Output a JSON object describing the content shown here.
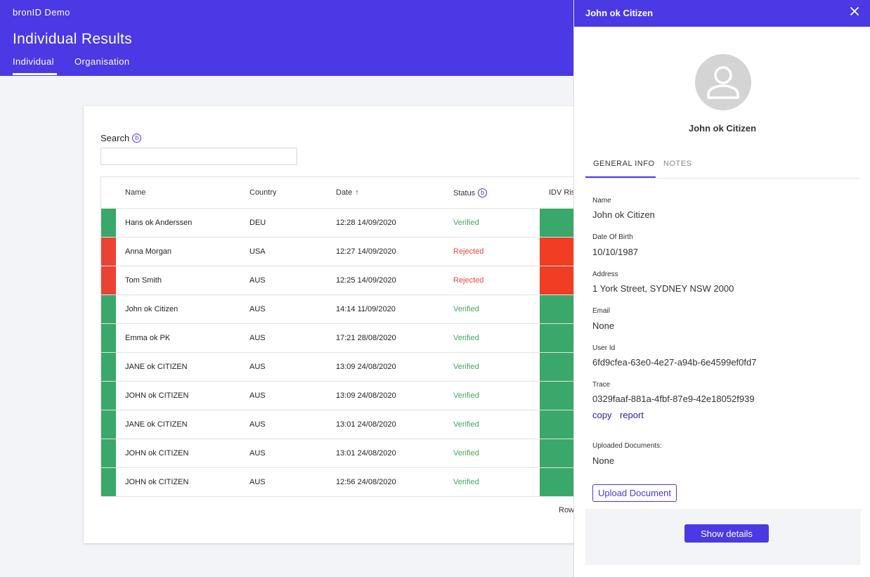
{
  "app": {
    "name": "bronID Demo",
    "page_title": "Individual Results",
    "tabs": [
      {
        "label": "Individual",
        "active": true
      },
      {
        "label": "Organisation",
        "active": false
      }
    ]
  },
  "search": {
    "label": "Search",
    "info_glyph": "b",
    "value": "",
    "placeholder": ""
  },
  "table": {
    "columns": [
      "Name",
      "Country",
      "Date",
      "Status",
      "IDV Ris"
    ],
    "sort_glyph": "↑",
    "status_info_glyph": "b",
    "rows": [
      {
        "name": "Hans ok Anderssen",
        "country": "DEU",
        "date": "12:28 14/09/2020",
        "status": "Verified"
      },
      {
        "name": "Anna Morgan",
        "country": "USA",
        "date": "12:27 14/09/2020",
        "status": "Rejected"
      },
      {
        "name": "Tom Smith",
        "country": "AUS",
        "date": "12:25 14/09/2020",
        "status": "Rejected"
      },
      {
        "name": "John ok Citizen",
        "country": "AUS",
        "date": "14:14 11/09/2020",
        "status": "Verified"
      },
      {
        "name": "Emma ok PK",
        "country": "AUS",
        "date": "17:21 28/08/2020",
        "status": "Verified"
      },
      {
        "name": "JANE ok CITIZEN",
        "country": "AUS",
        "date": "13:09 24/08/2020",
        "status": "Verified"
      },
      {
        "name": "JOHN ok CITIZEN",
        "country": "AUS",
        "date": "13:09 24/08/2020",
        "status": "Verified"
      },
      {
        "name": "JANE ok CITIZEN",
        "country": "AUS",
        "date": "13:01 24/08/2020",
        "status": "Verified"
      },
      {
        "name": "JOHN ok CITIZEN",
        "country": "AUS",
        "date": "13:01 24/08/2020",
        "status": "Verified"
      },
      {
        "name": "JOHN ok CITIZEN",
        "country": "AUS",
        "date": "12:56 24/08/2020",
        "status": "Verified"
      }
    ],
    "footer_label": "Row"
  },
  "panel": {
    "title": "John ok Citizen",
    "person_name": "John ok Citizen",
    "tabs": [
      "GENERAL INFO",
      "NOTES"
    ],
    "fields": [
      {
        "label": "Name",
        "value": "John ok Citizen"
      },
      {
        "label": "Date Of Birth",
        "value": "10/10/1987"
      },
      {
        "label": "Address",
        "value": "1 York Street, SYDNEY NSW 2000"
      },
      {
        "label": "Email",
        "value": "None"
      },
      {
        "label": "User Id",
        "value": "6fd9cfea-63e0-4e27-a94b-6e4599ef0fd7"
      },
      {
        "label": "Trace",
        "value": "0329faaf-881a-4fbf-87e9-42e18052f939"
      }
    ],
    "copy_label": "copy",
    "report_label": "report",
    "uploaded_docs_label": "Uploaded Documents:",
    "uploaded_docs_value": "None",
    "upload_button": "Upload Document",
    "details_button": "Show details"
  },
  "colors": {
    "brand": "#4a39e4",
    "verified": "#3aa86a",
    "rejected": "#ea4335",
    "risk_high": "#f13d24",
    "verified_text": "#43a85a",
    "rejected_text": "#e5483d"
  },
  "icons": {
    "close": "close-icon",
    "avatar": "person-icon",
    "sort": "arrow-up-icon",
    "info": "info-icon"
  }
}
